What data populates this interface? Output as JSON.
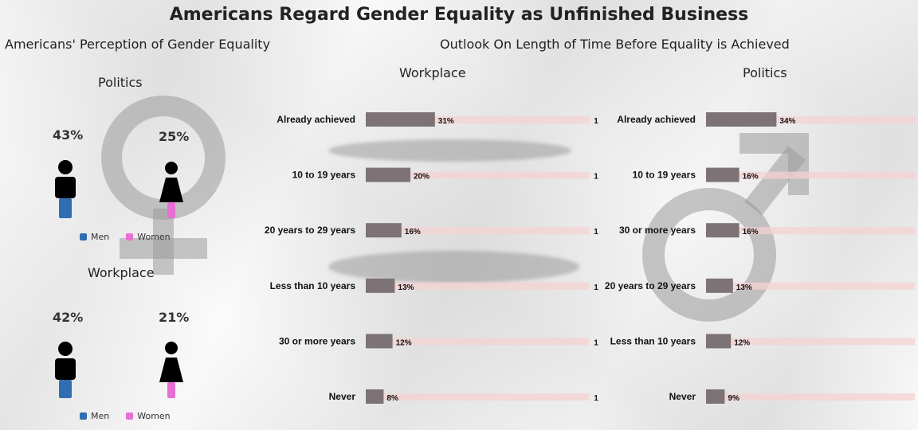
{
  "title": "Americans Regard Gender Equality as Unfinished Business",
  "left_title": "Americans' Perception of Gender Equality",
  "right_title": "Outlook On Length of Time Before Equality is Achieved",
  "colors": {
    "men": "#2f6fb1",
    "women": "#e86fd4",
    "bar": "#7d7275",
    "track": "#f6d2d2"
  },
  "perception": [
    {
      "title": "Politics",
      "men": "43%",
      "women": "25%",
      "legend_men": "Men",
      "legend_women": "Women"
    },
    {
      "title": "Workplace",
      "men": "42%",
      "women": "21%",
      "legend_men": "Men",
      "legend_women": "Women"
    }
  ],
  "chart_data": [
    {
      "type": "bar",
      "title": "Workplace",
      "categories": [
        "Already achieved",
        "10 to 19 years",
        "20 years to 29 years",
        "Less than 10 years",
        "30 or more years",
        "Never"
      ],
      "values": [
        31,
        20,
        16,
        13,
        12,
        8
      ],
      "value_labels": [
        "31%",
        "20%",
        "16%",
        "13%",
        "12%",
        "8%"
      ],
      "end_labels": [
        "1",
        "1",
        "1",
        "1",
        "1",
        "1"
      ]
    },
    {
      "type": "bar",
      "title": "Politics",
      "categories": [
        "Already achieved",
        "10 to 19 years",
        "30 or more years",
        "20 years to 29 years",
        "Less than 10 years",
        "Never"
      ],
      "values": [
        34,
        16,
        16,
        13,
        12,
        9
      ],
      "value_labels": [
        "34%",
        "16%",
        "16%",
        "13%",
        "12%",
        "9%"
      ]
    }
  ]
}
